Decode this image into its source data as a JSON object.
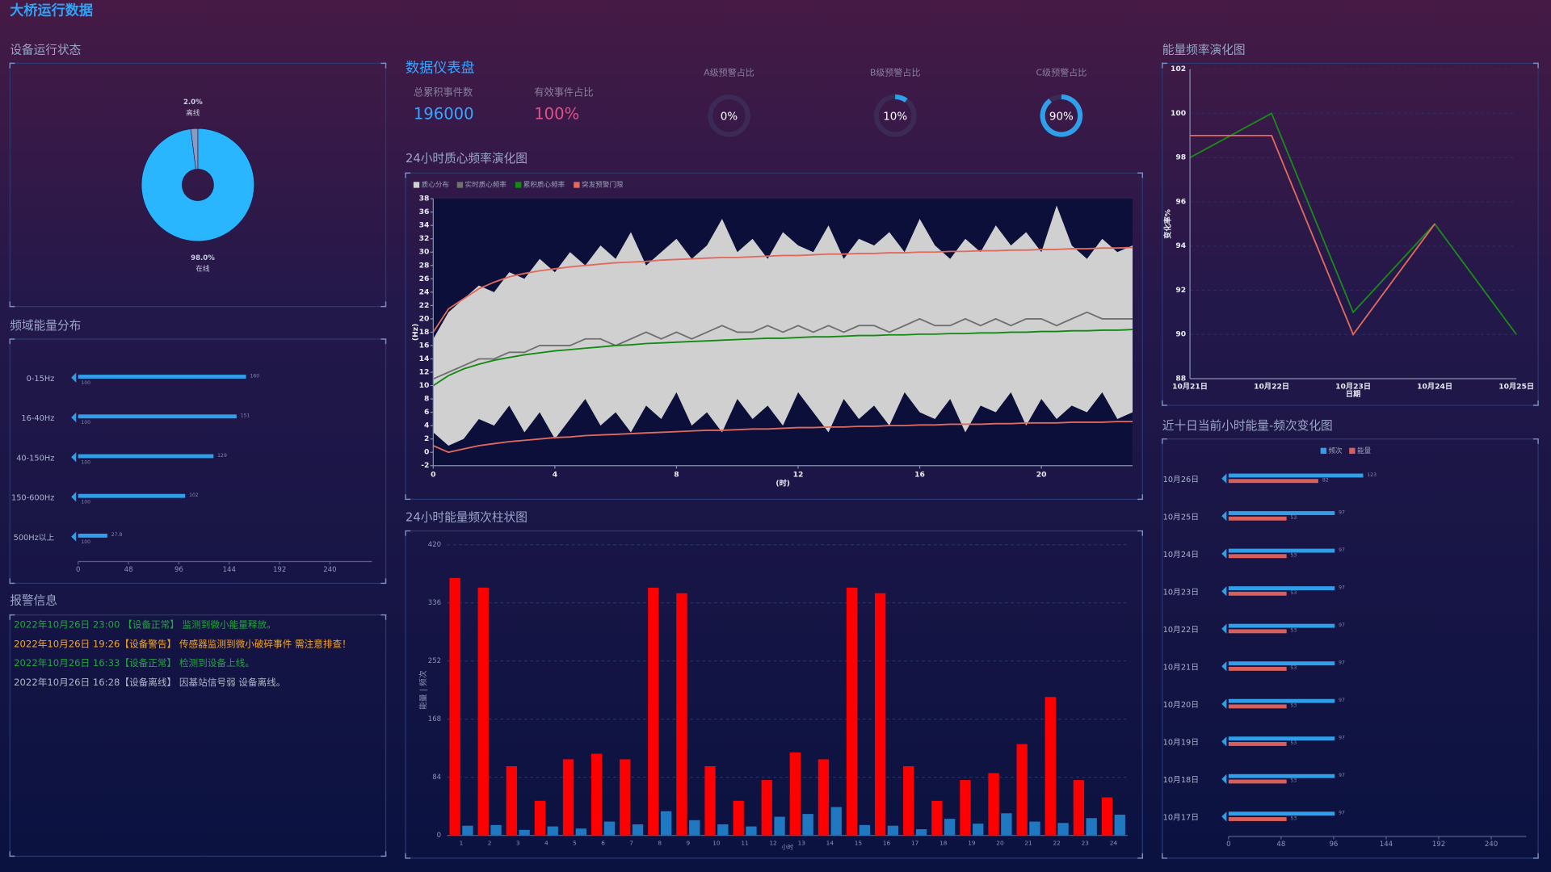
{
  "header": {
    "title": "大桥运行数据"
  },
  "dashboard": {
    "title": "数据仪表盘",
    "stats": [
      {
        "name": "总累积事件数",
        "value": 196000,
        "color": "#3ba4ff"
      },
      {
        "name": "有效事件占比",
        "value": 100,
        "value_label": "100%",
        "color": "#e0528a"
      }
    ],
    "gauges": [
      {
        "name": "A级预警占比",
        "value": 0,
        "value_label": "0%"
      },
      {
        "name": "B级预警占比",
        "value": 10,
        "value_label": "10%"
      },
      {
        "name": "C级预警占比",
        "value": 90,
        "value_label": "90%"
      }
    ]
  },
  "alarms": {
    "title": "报警信息",
    "entries": [
      {
        "text": "2022年10月26日 23:00 【设备正常】 监测到微小能量释放。",
        "color": "#21a63c"
      },
      {
        "text": "2022年10月26日 19:26【设备警告】 传感器监测到微小破碎事件 需注意排查！",
        "color": "#f5a623"
      },
      {
        "text": "2022年10月26日 16:33【设备正常】 检测到设备上线。",
        "color": "#21a63c"
      },
      {
        "text": "2022年10月26日 16:28【设备离线】 因基站信号弱 设备离线。",
        "color": "#b0b6c8"
      }
    ]
  },
  "chart_data": [
    {
      "type": "pie",
      "title": "设备运行状态",
      "slices": [
        {
          "name": "在线",
          "value": 98,
          "value_label": "98.0%",
          "color": "#29b6ff"
        },
        {
          "name": "离线",
          "value": 2,
          "value_label": "2.0%",
          "color": "#8a9ac0"
        }
      ]
    },
    {
      "type": "bar",
      "orientation": "horizontal",
      "title": "频域能量分布",
      "categories": [
        "0-15Hz",
        "16-40Hz",
        "40-150Hz",
        "150-600Hz",
        "500Hz以上"
      ],
      "values": [
        160,
        151,
        129,
        102,
        27.8
      ],
      "marker_values": [
        100,
        100,
        100,
        100,
        100
      ],
      "color": "#2e9fe8",
      "xlim": [
        0,
        280
      ],
      "xticks": [
        0,
        48,
        96,
        144,
        192,
        240
      ]
    },
    {
      "type": "line",
      "title": "24小时质心频率演化图",
      "xlabel": "(时)",
      "ylabel": "(Hz)",
      "legend": "top-left",
      "x": [
        0,
        0.5,
        1,
        1.5,
        2,
        2.5,
        3,
        3.5,
        4,
        4.5,
        5,
        5.5,
        6,
        6.5,
        7,
        7.5,
        8,
        8.5,
        9,
        9.5,
        10,
        10.5,
        11,
        11.5,
        12,
        12.5,
        13,
        13.5,
        14,
        14.5,
        15,
        15.5,
        16,
        16.5,
        17,
        17.5,
        18,
        18.5,
        19,
        19.5,
        20,
        20.5,
        21,
        21.5,
        22,
        22.5,
        23
      ],
      "xlim": [
        0,
        23
      ],
      "xticks": [
        0,
        4,
        8,
        12,
        16,
        20
      ],
      "ylim": [
        -2,
        38
      ],
      "yticks": [
        -2,
        0,
        2,
        4,
        6,
        8,
        10,
        12,
        14,
        16,
        18,
        20,
        22,
        24,
        26,
        28,
        30,
        32,
        34,
        36,
        38
      ],
      "series": [
        {
          "name": "质心分布",
          "color": "#d0d0d0",
          "style": "band",
          "values": [
            17,
            21,
            23,
            25,
            24,
            27,
            26,
            29,
            27,
            30,
            28,
            31,
            29,
            33,
            28,
            30,
            32,
            29,
            31,
            35,
            30,
            32,
            29,
            33,
            31,
            30,
            34,
            29,
            32,
            31,
            33,
            30,
            35,
            31,
            29,
            32,
            30,
            34,
            31,
            33,
            30,
            37,
            31,
            29,
            32,
            30,
            31
          ],
          "lower": [
            3,
            1,
            2,
            5,
            4,
            7,
            3,
            6,
            2,
            5,
            8,
            4,
            6,
            3,
            7,
            5,
            9,
            4,
            6,
            3,
            8,
            5,
            7,
            4,
            9,
            6,
            3,
            8,
            5,
            7,
            4,
            9,
            6,
            5,
            8,
            3,
            7,
            6,
            9,
            4,
            8,
            5,
            7,
            6,
            9,
            5,
            6
          ]
        },
        {
          "name": "实时质心频率",
          "color": "#707070",
          "values": [
            11,
            12,
            13,
            14,
            14,
            15,
            15,
            16,
            16,
            16,
            17,
            17,
            16,
            17,
            18,
            17,
            18,
            17,
            18,
            19,
            18,
            18,
            19,
            18,
            19,
            18,
            19,
            18,
            19,
            19,
            18,
            19,
            20,
            19,
            19,
            20,
            19,
            20,
            19,
            20,
            20,
            19,
            20,
            21,
            20,
            20,
            20
          ]
        },
        {
          "name": "累积质心频率",
          "color": "#138a13",
          "values": [
            10,
            11.5,
            12.5,
            13.2,
            13.8,
            14.2,
            14.6,
            14.9,
            15.2,
            15.4,
            15.6,
            15.8,
            16,
            16.1,
            16.3,
            16.4,
            16.5,
            16.6,
            16.7,
            16.8,
            16.9,
            17,
            17.1,
            17.1,
            17.2,
            17.3,
            17.3,
            17.4,
            17.5,
            17.5,
            17.6,
            17.6,
            17.7,
            17.7,
            17.8,
            17.8,
            17.9,
            17.9,
            18,
            18,
            18.1,
            18.1,
            18.2,
            18.2,
            18.3,
            18.3,
            18.4
          ]
        },
        {
          "name": "突发预警门限",
          "color": "#e06a5e",
          "values": [
            18,
            21.5,
            23,
            24.5,
            25.5,
            26.3,
            26.8,
            27.2,
            27.5,
            27.8,
            28,
            28.2,
            28.4,
            28.5,
            28.6,
            28.8,
            28.9,
            29,
            29.1,
            29.2,
            29.2,
            29.3,
            29.4,
            29.5,
            29.5,
            29.6,
            29.7,
            29.7,
            29.8,
            29.8,
            29.9,
            29.9,
            30,
            30,
            30.1,
            30.1,
            30.2,
            30.2,
            30.3,
            30.3,
            30.4,
            30.4,
            30.5,
            30.5,
            30.6,
            30.6,
            30.7
          ],
          "lower": [
            1,
            0,
            0.5,
            1,
            1.3,
            1.6,
            1.8,
            2,
            2.2,
            2.3,
            2.5,
            2.6,
            2.7,
            2.8,
            2.9,
            3,
            3.1,
            3.2,
            3.3,
            3.3,
            3.4,
            3.5,
            3.5,
            3.6,
            3.7,
            3.7,
            3.8,
            3.8,
            3.9,
            3.9,
            4,
            4,
            4.1,
            4.1,
            4.2,
            4.2,
            4.2,
            4.3,
            4.3,
            4.4,
            4.4,
            4.4,
            4.5,
            4.5,
            4.5,
            4.6,
            4.6
          ]
        }
      ]
    },
    {
      "type": "bar",
      "title": "24小时能量频次柱状图",
      "xlabel": "小时",
      "ylabel": "能量 | 频次",
      "grid": true,
      "categories": [
        "1",
        "2",
        "3",
        "4",
        "5",
        "6",
        "7",
        "8",
        "9",
        "10",
        "11",
        "12",
        "13",
        "14",
        "15",
        "16",
        "17",
        "18",
        "19",
        "20",
        "21",
        "22",
        "23",
        "24"
      ],
      "ylim": [
        0,
        420
      ],
      "yticks": [
        0,
        84,
        168,
        252,
        336,
        420
      ],
      "series": [
        {
          "color": "#ff0000",
          "values": [
            372,
            358,
            100,
            50,
            110,
            118,
            110,
            358,
            350,
            100,
            50,
            80,
            120,
            110,
            358,
            350,
            100,
            50,
            80,
            90,
            132,
            200,
            80,
            55
          ]
        },
        {
          "color": "#1f78c0",
          "values": [
            14,
            15,
            8,
            13,
            10,
            20,
            16,
            35,
            22,
            16,
            13,
            27,
            31,
            41,
            15,
            14,
            9,
            24,
            17,
            32,
            20,
            18,
            25,
            30
          ]
        }
      ]
    },
    {
      "type": "line",
      "title": "能量频率演化图",
      "xlabel": "日期",
      "ylabel": "变化率%",
      "grid": true,
      "categories": [
        "10月21日",
        "10月22日",
        "10月23日",
        "10月24日",
        "10月25日"
      ],
      "ylim": [
        88,
        102
      ],
      "yticks": [
        88,
        90,
        92,
        94,
        96,
        98,
        100,
        102
      ],
      "series": [
        {
          "color": "#1a8a1a",
          "values": [
            98,
            100,
            91,
            95,
            90
          ]
        },
        {
          "color": "#e06a5e",
          "values": [
            99,
            99,
            90,
            95,
            null
          ]
        }
      ]
    },
    {
      "type": "bar",
      "orientation": "horizontal",
      "title": "近十日当前小时能量-频次变化图",
      "legend": "top",
      "categories": [
        "10月26日",
        "10月25日",
        "10月24日",
        "10月23日",
        "10月22日",
        "10月21日",
        "10月20日",
        "10月19日",
        "10月18日",
        "10月17日"
      ],
      "xlim": [
        0,
        272
      ],
      "xticks": [
        0,
        48,
        96,
        144,
        192,
        240
      ],
      "series": [
        {
          "name": "频次",
          "color": "#2e9fe8",
          "values": [
            123,
            97,
            97,
            97,
            97,
            97,
            97,
            97,
            97,
            97
          ]
        },
        {
          "name": "能量",
          "color": "#d9605a",
          "values": [
            82,
            53,
            53,
            53,
            53,
            53,
            53,
            53,
            53,
            53
          ]
        }
      ]
    }
  ]
}
